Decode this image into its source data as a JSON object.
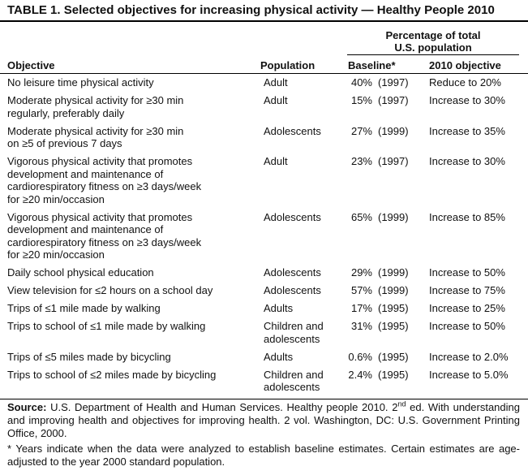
{
  "title": "TABLE 1. Selected objectives for increasing physical activity — Healthy People 2010",
  "header": {
    "group": [
      "Percentage of total",
      "U.S. population"
    ],
    "columns": [
      "Objective",
      "Population",
      "Baseline*",
      "2010 objective"
    ]
  },
  "table": {
    "rows": [
      {
        "objective": [
          "No leisure time physical activity"
        ],
        "population": [
          "Adult"
        ],
        "baseline": "40%",
        "year": "(1997)",
        "target": "Reduce to 20%"
      },
      {
        "objective": [
          "Moderate physical activity for ≥30 min",
          "regularly, preferably daily"
        ],
        "population": [
          "Adult"
        ],
        "baseline": "15%",
        "year": "(1997)",
        "target": "Increase to 30%"
      },
      {
        "objective": [
          "Moderate physical activity for ≥30 min",
          "on ≥5 of previous 7 days"
        ],
        "population": [
          "Adolescents"
        ],
        "baseline": "27%",
        "year": "(1999)",
        "target": "Increase to 35%"
      },
      {
        "objective": [
          "Vigorous physical activity that promotes",
          "development and maintenance of",
          "cardiorespiratory fitness on ≥3 days/week",
          "for ≥20 min/occasion"
        ],
        "population": [
          "Adult"
        ],
        "baseline": "23%",
        "year": "(1997)",
        "target": "Increase to 30%"
      },
      {
        "objective": [
          "Vigorous physical activity that promotes",
          "development and maintenance of",
          "cardiorespiratory fitness on ≥3 days/week",
          "for ≥20 min/occasion"
        ],
        "population": [
          "Adolescents"
        ],
        "baseline": "65%",
        "year": "(1999)",
        "target": "Increase to 85%"
      },
      {
        "objective": [
          "Daily school physical education"
        ],
        "population": [
          "Adolescents"
        ],
        "baseline": "29%",
        "year": "(1999)",
        "target": "Increase to 50%"
      },
      {
        "objective": [
          "View television for ≤2 hours on a school day"
        ],
        "population": [
          "Adolescents"
        ],
        "baseline": "57%",
        "year": "(1999)",
        "target": "Increase to 75%"
      },
      {
        "objective": [
          "Trips of ≤1 mile made by walking"
        ],
        "population": [
          "Adults"
        ],
        "baseline": "17%",
        "year": "(1995)",
        "target": "Increase to 25%"
      },
      {
        "objective": [
          "Trips to school of ≤1 mile made by walking"
        ],
        "population": [
          "Children and",
          "adolescents"
        ],
        "baseline": "31%",
        "year": "(1995)",
        "target": "Increase to 50%"
      },
      {
        "objective": [
          "Trips of ≤5 miles made by bicycling"
        ],
        "population": [
          "Adults"
        ],
        "baseline": "0.6%",
        "year": "(1995)",
        "target": "Increase to 2.0%"
      },
      {
        "objective": [
          "Trips to school of ≤2 miles made by bicycling"
        ],
        "population": [
          "Children and",
          "adolescents"
        ],
        "baseline": "2.4%",
        "year": "(1995)",
        "target": "Increase to 5.0%"
      }
    ]
  },
  "source": {
    "label": "Source:",
    "text_before": "U.S. Department of Health and Human Services. Healthy people 2010. 2",
    "superscript": "nd",
    "text_after": "ed. With understanding and improving health and objectives for improving health. 2 vol. Washington, DC: U.S. Government Printing Office, 2000."
  },
  "footnote": "* Years indicate when the data were analyzed to establish baseline estimates. Certain estimates are age-adjusted to the year 2000 standard population."
}
